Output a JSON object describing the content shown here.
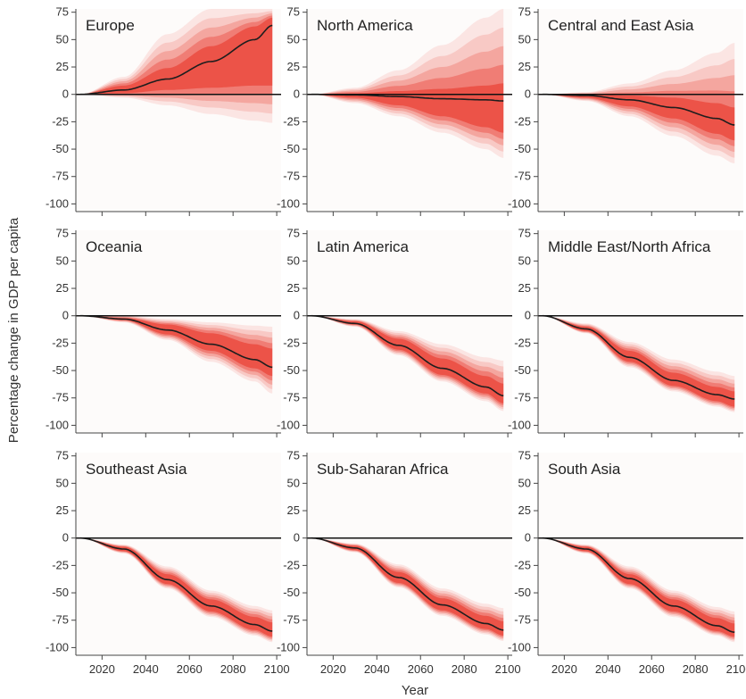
{
  "chart_data": {
    "type": "area",
    "xlabel": "Year",
    "ylabel": "Percentage change in GDP per capita",
    "xlim": [
      2008,
      2102
    ],
    "ylim": [
      -107,
      78
    ],
    "x_ticks": [
      2020,
      2040,
      2060,
      2080,
      2100
    ],
    "x_tick_labels": [
      "2020",
      "2040",
      "2060",
      "2080",
      "2100"
    ],
    "y_ticks": [
      75,
      50,
      25,
      0,
      -25,
      -50,
      -75,
      -100
    ],
    "y_tick_labels": [
      "75",
      "50",
      "25",
      "0",
      "-25",
      "-50",
      "-75",
      "-100"
    ],
    "grid": false,
    "colors": {
      "band": "#e8291c",
      "median": "#1e1e1e",
      "zero_line": "#111111",
      "panel_bg": "#fdfbfa"
    },
    "panels": [
      {
        "title": "Europe",
        "start": 2010,
        "years": [
          2010,
          2030,
          2050,
          2070,
          2090,
          2098
        ],
        "median": [
          0,
          4,
          14,
          30,
          50,
          63
        ],
        "outer_low": [
          0,
          -3,
          -10,
          -18,
          -24,
          -26
        ],
        "outer_high": [
          0,
          16,
          55,
          78,
          78,
          78
        ],
        "inner_low": [
          0,
          1,
          4,
          6,
          8,
          8
        ],
        "inner_high": [
          0,
          8,
          24,
          44,
          62,
          70
        ]
      },
      {
        "title": "North America",
        "start": 2010,
        "years": [
          2010,
          2030,
          2050,
          2070,
          2090,
          2098
        ],
        "median": [
          0,
          -0.5,
          -2,
          -4,
          -5,
          -6
        ],
        "outer_low": [
          0,
          -8,
          -20,
          -35,
          -50,
          -58
        ],
        "outer_high": [
          0,
          6,
          22,
          45,
          70,
          78
        ],
        "inner_low": [
          0,
          -3,
          -10,
          -20,
          -30,
          -35
        ],
        "inner_high": [
          0,
          1,
          3,
          5,
          8,
          10
        ]
      },
      {
        "title": "Central and East Asia",
        "start": 2010,
        "years": [
          2010,
          2030,
          2050,
          2070,
          2090,
          2098
        ],
        "median": [
          0,
          -1,
          -5,
          -12,
          -22,
          -28
        ],
        "outer_low": [
          0,
          -6,
          -20,
          -38,
          -56,
          -63
        ],
        "outer_high": [
          0,
          2,
          10,
          22,
          38,
          47
        ],
        "inner_low": [
          0,
          -3,
          -11,
          -22,
          -36,
          -42
        ],
        "inner_high": [
          0,
          0,
          -1,
          -3,
          -8,
          -12
        ]
      },
      {
        "title": "Oceania",
        "start": 2010,
        "years": [
          2010,
          2030,
          2050,
          2070,
          2090,
          2098
        ],
        "median": [
          0,
          -3,
          -13,
          -26,
          -40,
          -47
        ],
        "outer_low": [
          0,
          -6,
          -22,
          -42,
          -60,
          -71
        ],
        "outer_high": [
          0,
          0,
          -3,
          -6,
          -9,
          -10
        ],
        "inner_low": [
          0,
          -4,
          -17,
          -32,
          -48,
          -55
        ],
        "inner_high": [
          0,
          -2,
          -8,
          -16,
          -26,
          -30
        ]
      },
      {
        "title": "Latin America",
        "start": 2010,
        "years": [
          2010,
          2030,
          2050,
          2070,
          2090,
          2098
        ],
        "median": [
          0,
          -7,
          -27,
          -48,
          -65,
          -73
        ],
        "outer_low": [
          0,
          -10,
          -36,
          -60,
          -78,
          -87
        ],
        "outer_high": [
          0,
          -3,
          -14,
          -26,
          -38,
          -41
        ],
        "inner_low": [
          0,
          -8,
          -31,
          -54,
          -71,
          -80
        ],
        "inner_high": [
          0,
          -5,
          -21,
          -39,
          -55,
          -62
        ]
      },
      {
        "title": "Middle East/North Africa",
        "start": 2010,
        "years": [
          2010,
          2030,
          2050,
          2070,
          2090,
          2098
        ],
        "median": [
          0,
          -12,
          -38,
          -59,
          -72,
          -76
        ],
        "outer_low": [
          0,
          -16,
          -47,
          -69,
          -83,
          -88
        ],
        "outer_high": [
          0,
          -7,
          -24,
          -40,
          -51,
          -55
        ],
        "inner_low": [
          0,
          -14,
          -42,
          -64,
          -78,
          -83
        ],
        "inner_high": [
          0,
          -10,
          -32,
          -52,
          -65,
          -69
        ]
      },
      {
        "title": "Southeast Asia",
        "start": 2010,
        "years": [
          2010,
          2030,
          2050,
          2070,
          2090,
          2098
        ],
        "median": [
          0,
          -10,
          -38,
          -62,
          -79,
          -85
        ],
        "outer_low": [
          0,
          -14,
          -46,
          -72,
          -89,
          -95
        ],
        "outer_high": [
          0,
          -6,
          -26,
          -48,
          -62,
          -66
        ],
        "inner_low": [
          0,
          -12,
          -42,
          -67,
          -84,
          -90
        ],
        "inner_high": [
          0,
          -8,
          -33,
          -56,
          -72,
          -77
        ]
      },
      {
        "title": "Sub-Saharan Africa",
        "start": 2010,
        "years": [
          2010,
          2030,
          2050,
          2070,
          2090,
          2098
        ],
        "median": [
          0,
          -9,
          -36,
          -61,
          -78,
          -84
        ],
        "outer_low": [
          0,
          -13,
          -45,
          -71,
          -88,
          -94
        ],
        "outer_high": [
          0,
          -5,
          -24,
          -46,
          -60,
          -64
        ],
        "inner_low": [
          0,
          -11,
          -41,
          -66,
          -83,
          -89
        ],
        "inner_high": [
          0,
          -7,
          -31,
          -55,
          -71,
          -76
        ]
      },
      {
        "title": "South Asia",
        "start": 2010,
        "years": [
          2010,
          2030,
          2050,
          2070,
          2090,
          2098
        ],
        "median": [
          0,
          -10,
          -37,
          -62,
          -80,
          -86
        ],
        "outer_low": [
          0,
          -14,
          -46,
          -72,
          -89,
          -95
        ],
        "outer_high": [
          0,
          -6,
          -26,
          -48,
          -63,
          -67
        ],
        "inner_low": [
          0,
          -12,
          -42,
          -67,
          -85,
          -90
        ],
        "inner_high": [
          0,
          -8,
          -33,
          -56,
          -73,
          -78
        ]
      }
    ]
  }
}
